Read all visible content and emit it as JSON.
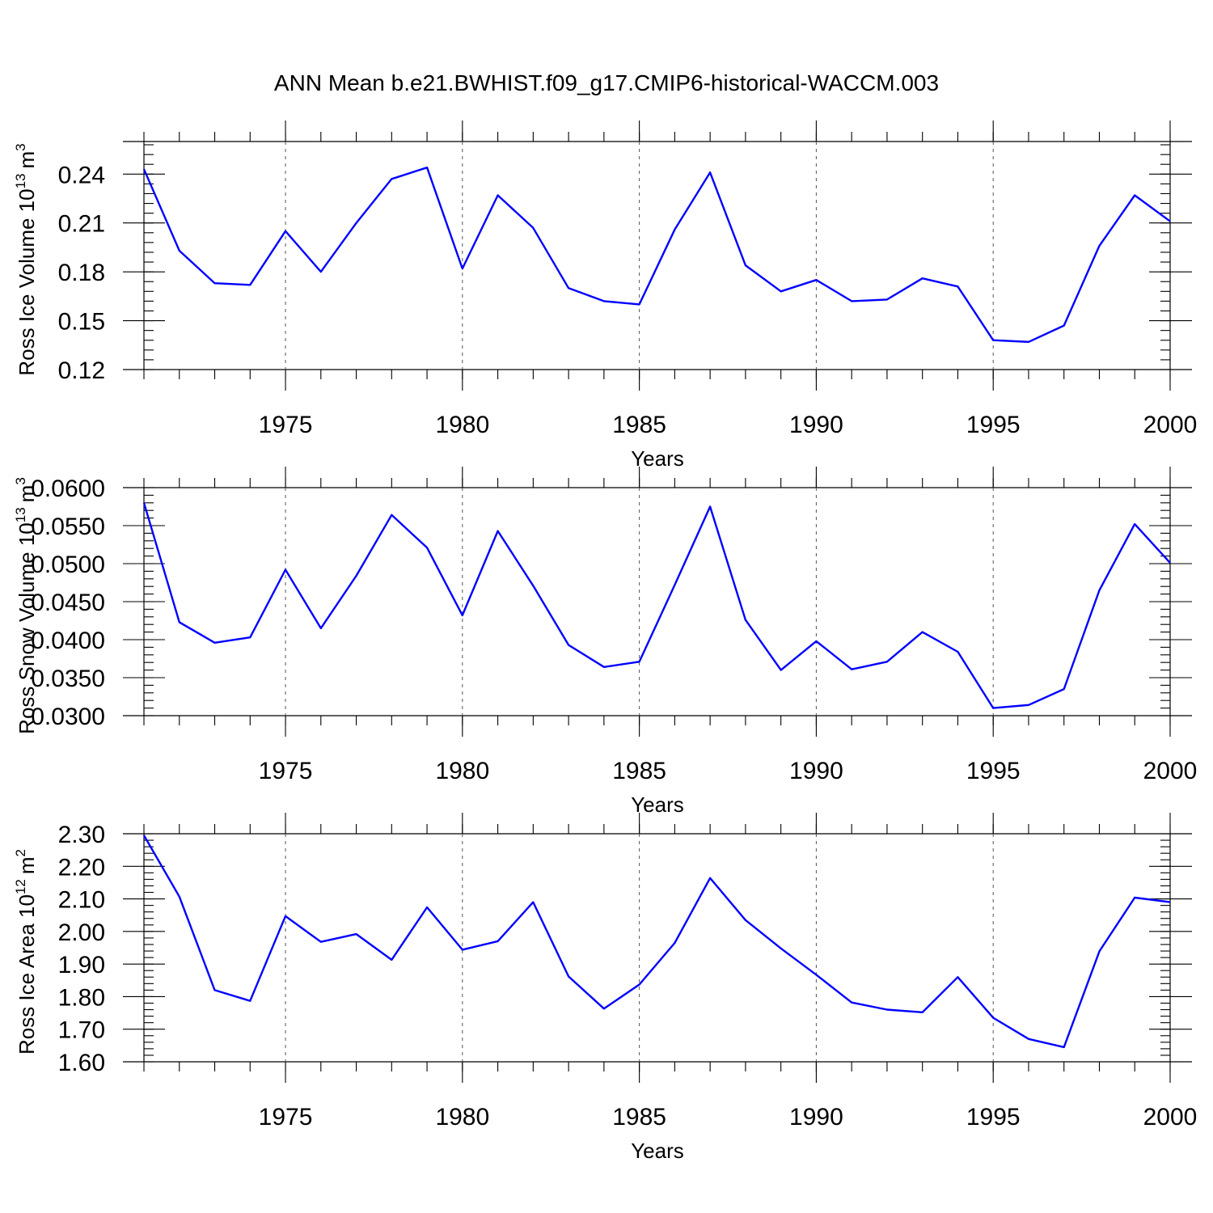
{
  "title": "ANN Mean b.e21.BWHIST.f09_g17.CMIP6-historical-WACCM.003",
  "colors": {
    "line": "#0000ff",
    "axes": "#000000",
    "grid": "#555555"
  },
  "chart_data": [
    {
      "type": "line",
      "ylabel": "Ross Ice Volume 10",
      "ylabel_exponent": "13",
      "ylabel_unit": "m",
      "ylabel_unit_exponent": "3",
      "xlabel": "Years",
      "xlim": [
        1971,
        2000
      ],
      "ylim": [
        0.12,
        0.26
      ],
      "yticks": [
        0.12,
        0.15,
        0.18,
        0.21,
        0.24
      ],
      "ytick_labels": [
        "0.12",
        "0.15",
        "0.18",
        "0.21",
        "0.24"
      ],
      "ytick_minor_step": 0.006,
      "xticks": [
        1975,
        1980,
        1985,
        1990,
        1995,
        2000
      ],
      "xtick_labels": [
        "1975",
        "1980",
        "1985",
        "1990",
        "1995",
        "2000"
      ],
      "x": [
        1971,
        1972,
        1973,
        1974,
        1975,
        1976,
        1977,
        1978,
        1979,
        1980,
        1981,
        1982,
        1983,
        1984,
        1985,
        1986,
        1987,
        1988,
        1989,
        1990,
        1991,
        1992,
        1993,
        1994,
        1995,
        1996,
        1997,
        1998,
        1999,
        2000
      ],
      "values": [
        0.243,
        0.193,
        0.173,
        0.172,
        0.205,
        0.18,
        0.21,
        0.237,
        0.244,
        0.182,
        0.227,
        0.207,
        0.17,
        0.162,
        0.16,
        0.206,
        0.241,
        0.184,
        0.168,
        0.175,
        0.162,
        0.163,
        0.176,
        0.171,
        0.138,
        0.137,
        0.147,
        0.196,
        0.227,
        0.211
      ]
    },
    {
      "type": "line",
      "ylabel": "Ross Snow Volume 10",
      "ylabel_exponent": "13",
      "ylabel_unit": "m",
      "ylabel_unit_exponent": "3",
      "xlabel": "Years",
      "xlim": [
        1971,
        2000
      ],
      "ylim": [
        0.03,
        0.06
      ],
      "yticks": [
        0.03,
        0.035,
        0.04,
        0.045,
        0.05,
        0.055,
        0.06
      ],
      "ytick_labels": [
        "0.0300",
        "0.0350",
        "0.0400",
        "0.0450",
        "0.0500",
        "0.0550",
        "0.0600"
      ],
      "ytick_minor_step": 0.001,
      "xticks": [
        1975,
        1980,
        1985,
        1990,
        1995,
        2000
      ],
      "xtick_labels": [
        "1975",
        "1980",
        "1985",
        "1990",
        "1995",
        "2000"
      ],
      "x": [
        1971,
        1972,
        1973,
        1974,
        1975,
        1976,
        1977,
        1978,
        1979,
        1980,
        1981,
        1982,
        1983,
        1984,
        1985,
        1986,
        1987,
        1988,
        1989,
        1990,
        1991,
        1992,
        1993,
        1994,
        1995,
        1996,
        1997,
        1998,
        1999,
        2000
      ],
      "values": [
        0.058,
        0.0423,
        0.0396,
        0.0403,
        0.0492,
        0.0415,
        0.0484,
        0.0564,
        0.0521,
        0.0432,
        0.0543,
        0.0471,
        0.0393,
        0.0364,
        0.0371,
        0.0472,
        0.0575,
        0.0426,
        0.036,
        0.0398,
        0.0361,
        0.0371,
        0.041,
        0.0384,
        0.031,
        0.0314,
        0.0335,
        0.0465,
        0.0552,
        0.0501
      ]
    },
    {
      "type": "line",
      "ylabel": "Ross Ice Area 10",
      "ylabel_exponent": "12",
      "ylabel_unit": "m",
      "ylabel_unit_exponent": "2",
      "xlabel": "Years",
      "xlim": [
        1971,
        2000
      ],
      "ylim": [
        1.6,
        2.3
      ],
      "yticks": [
        1.6,
        1.7,
        1.8,
        1.9,
        2.0,
        2.1,
        2.2,
        2.3
      ],
      "ytick_labels": [
        "1.60",
        "1.70",
        "1.80",
        "1.90",
        "2.00",
        "2.10",
        "2.20",
        "2.30"
      ],
      "ytick_minor_step": 0.02,
      "xticks": [
        1975,
        1980,
        1985,
        1990,
        1995,
        2000
      ],
      "xtick_labels": [
        "1975",
        "1980",
        "1985",
        "1990",
        "1995",
        "2000"
      ],
      "x": [
        1971,
        1972,
        1973,
        1974,
        1975,
        1976,
        1977,
        1978,
        1979,
        1980,
        1981,
        1982,
        1983,
        1984,
        1985,
        1986,
        1987,
        1988,
        1989,
        1990,
        1991,
        1992,
        1993,
        1994,
        1995,
        1996,
        1997,
        1998,
        1999,
        2000
      ],
      "values": [
        2.295,
        2.107,
        1.82,
        1.787,
        2.047,
        1.968,
        1.992,
        1.913,
        2.074,
        1.944,
        1.97,
        2.09,
        1.862,
        1.763,
        1.837,
        1.965,
        2.164,
        2.035,
        1.948,
        1.867,
        1.782,
        1.76,
        1.752,
        1.86,
        1.735,
        1.67,
        1.645,
        1.939,
        2.104,
        2.09
      ]
    }
  ]
}
